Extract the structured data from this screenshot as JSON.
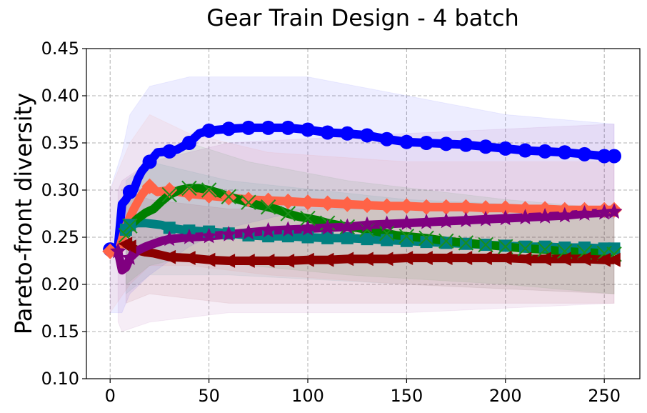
{
  "chart_data": {
    "type": "line",
    "title": "Gear Train Design - 4 batch",
    "xlabel": "",
    "ylabel": "Pareto-front diversity",
    "xlim": [
      -12,
      268
    ],
    "ylim": [
      0.1,
      0.45
    ],
    "xticks": [
      0,
      50,
      100,
      150,
      200,
      250
    ],
    "yticks": [
      0.1,
      0.15,
      0.2,
      0.25,
      0.3,
      0.35,
      0.4,
      0.45
    ],
    "xtick_labels": [
      "0",
      "50",
      "100",
      "150",
      "200",
      "250"
    ],
    "ytick_labels": [
      "0.10",
      "0.15",
      "0.20",
      "0.25",
      "0.30",
      "0.35",
      "0.40",
      "0.45"
    ],
    "grid": true,
    "legend": "none",
    "series": [
      {
        "color": "#0000ff",
        "marker": "circle",
        "line_width": 12,
        "marker_size": 10,
        "points": [
          [
            0,
            0.237
          ],
          [
            4,
            0.24
          ],
          [
            6,
            0.285
          ],
          [
            8,
            0.29
          ],
          [
            10,
            0.298
          ],
          [
            12,
            0.3
          ],
          [
            14,
            0.312
          ],
          [
            16,
            0.32
          ],
          [
            18,
            0.325
          ],
          [
            20,
            0.33
          ],
          [
            24,
            0.34
          ],
          [
            30,
            0.341
          ],
          [
            34,
            0.343
          ],
          [
            40,
            0.35
          ],
          [
            45,
            0.36
          ],
          [
            50,
            0.363
          ],
          [
            60,
            0.365
          ],
          [
            70,
            0.366
          ],
          [
            80,
            0.366
          ],
          [
            90,
            0.366
          ],
          [
            100,
            0.364
          ],
          [
            110,
            0.361
          ],
          [
            120,
            0.36
          ],
          [
            130,
            0.358
          ],
          [
            140,
            0.354
          ],
          [
            150,
            0.351
          ],
          [
            160,
            0.35
          ],
          [
            170,
            0.349
          ],
          [
            180,
            0.348
          ],
          [
            190,
            0.346
          ],
          [
            200,
            0.344
          ],
          [
            210,
            0.342
          ],
          [
            220,
            0.341
          ],
          [
            230,
            0.34
          ],
          [
            240,
            0.338
          ],
          [
            250,
            0.336
          ],
          [
            255,
            0.336
          ]
        ],
        "band": [
          [
            0,
            0.17,
            0.3
          ],
          [
            6,
            0.17,
            0.34
          ],
          [
            10,
            0.19,
            0.38
          ],
          [
            20,
            0.21,
            0.41
          ],
          [
            40,
            0.24,
            0.42
          ],
          [
            60,
            0.26,
            0.42
          ],
          [
            100,
            0.28,
            0.42
          ],
          [
            150,
            0.28,
            0.4
          ],
          [
            200,
            0.28,
            0.38
          ],
          [
            255,
            0.27,
            0.37
          ]
        ]
      },
      {
        "color": "#ff6347",
        "marker": "diamond",
        "line_width": 12,
        "marker_size": 11,
        "points": [
          [
            0,
            0.235
          ],
          [
            4,
            0.233
          ],
          [
            8,
            0.262
          ],
          [
            12,
            0.28
          ],
          [
            16,
            0.295
          ],
          [
            18,
            0.3
          ],
          [
            20,
            0.304
          ],
          [
            24,
            0.298
          ],
          [
            30,
            0.3
          ],
          [
            40,
            0.296
          ],
          [
            50,
            0.294
          ],
          [
            60,
            0.292
          ],
          [
            70,
            0.29
          ],
          [
            80,
            0.289
          ],
          [
            90,
            0.288
          ],
          [
            100,
            0.287
          ],
          [
            110,
            0.286
          ],
          [
            120,
            0.285
          ],
          [
            130,
            0.284
          ],
          [
            140,
            0.283
          ],
          [
            150,
            0.283
          ],
          [
            160,
            0.282
          ],
          [
            170,
            0.282
          ],
          [
            180,
            0.282
          ],
          [
            190,
            0.281
          ],
          [
            200,
            0.281
          ],
          [
            210,
            0.28
          ],
          [
            220,
            0.28
          ],
          [
            230,
            0.279
          ],
          [
            240,
            0.279
          ],
          [
            250,
            0.279
          ],
          [
            255,
            0.279
          ]
        ],
        "band": [
          [
            0,
            0.17,
            0.3
          ],
          [
            10,
            0.2,
            0.35
          ],
          [
            20,
            0.22,
            0.38
          ],
          [
            40,
            0.22,
            0.36
          ],
          [
            80,
            0.21,
            0.34
          ],
          [
            150,
            0.2,
            0.33
          ],
          [
            255,
            0.19,
            0.33
          ]
        ]
      },
      {
        "color": "#008080",
        "marker": "square",
        "line_width": 12,
        "marker_size": 10,
        "points": [
          [
            8,
            0.258
          ],
          [
            10,
            0.263
          ],
          [
            14,
            0.265
          ],
          [
            18,
            0.265
          ],
          [
            22,
            0.264
          ],
          [
            26,
            0.263
          ],
          [
            30,
            0.26
          ],
          [
            40,
            0.257
          ],
          [
            50,
            0.256
          ],
          [
            60,
            0.254
          ],
          [
            70,
            0.252
          ],
          [
            80,
            0.251
          ],
          [
            90,
            0.251
          ],
          [
            100,
            0.25
          ],
          [
            110,
            0.249
          ],
          [
            120,
            0.249
          ],
          [
            130,
            0.248
          ],
          [
            140,
            0.247
          ],
          [
            150,
            0.246
          ],
          [
            160,
            0.245
          ],
          [
            170,
            0.244
          ],
          [
            180,
            0.243
          ],
          [
            190,
            0.242
          ],
          [
            200,
            0.241
          ],
          [
            210,
            0.24
          ],
          [
            220,
            0.24
          ],
          [
            230,
            0.239
          ],
          [
            240,
            0.239
          ],
          [
            250,
            0.238
          ],
          [
            255,
            0.238
          ]
        ],
        "band": [
          [
            8,
            0.19,
            0.31
          ],
          [
            20,
            0.21,
            0.33
          ],
          [
            60,
            0.21,
            0.31
          ],
          [
            150,
            0.2,
            0.29
          ],
          [
            255,
            0.19,
            0.28
          ]
        ]
      },
      {
        "color": "#008000",
        "marker": "x",
        "line_width": 12,
        "marker_size": 10,
        "points": [
          [
            8,
            0.252
          ],
          [
            10,
            0.262
          ],
          [
            14,
            0.27
          ],
          [
            18,
            0.276
          ],
          [
            22,
            0.28
          ],
          [
            26,
            0.288
          ],
          [
            30,
            0.295
          ],
          [
            35,
            0.3
          ],
          [
            40,
            0.302
          ],
          [
            45,
            0.302
          ],
          [
            50,
            0.3
          ],
          [
            55,
            0.297
          ],
          [
            60,
            0.293
          ],
          [
            65,
            0.29
          ],
          [
            70,
            0.287
          ],
          [
            75,
            0.284
          ],
          [
            80,
            0.282
          ],
          [
            85,
            0.279
          ],
          [
            90,
            0.275
          ],
          [
            95,
            0.272
          ],
          [
            100,
            0.27
          ],
          [
            105,
            0.268
          ],
          [
            110,
            0.265
          ],
          [
            115,
            0.263
          ],
          [
            120,
            0.261
          ],
          [
            125,
            0.26
          ],
          [
            130,
            0.258
          ],
          [
            135,
            0.256
          ],
          [
            140,
            0.254
          ],
          [
            145,
            0.252
          ],
          [
            150,
            0.251
          ],
          [
            160,
            0.249
          ],
          [
            170,
            0.246
          ],
          [
            180,
            0.244
          ],
          [
            190,
            0.242
          ],
          [
            200,
            0.24
          ],
          [
            210,
            0.238
          ],
          [
            220,
            0.237
          ],
          [
            230,
            0.235
          ],
          [
            240,
            0.234
          ],
          [
            250,
            0.233
          ],
          [
            255,
            0.232
          ]
        ],
        "band": [
          [
            8,
            0.2,
            0.3
          ],
          [
            20,
            0.22,
            0.33
          ],
          [
            40,
            0.23,
            0.35
          ],
          [
            70,
            0.22,
            0.33
          ],
          [
            120,
            0.21,
            0.31
          ],
          [
            200,
            0.2,
            0.29
          ],
          [
            255,
            0.19,
            0.28
          ]
        ]
      },
      {
        "color": "#8b0000",
        "marker": "triangle-left",
        "line_width": 12,
        "marker_size": 11,
        "points": [
          [
            8,
            0.243
          ],
          [
            10,
            0.24
          ],
          [
            14,
            0.236
          ],
          [
            18,
            0.234
          ],
          [
            22,
            0.233
          ],
          [
            26,
            0.231
          ],
          [
            30,
            0.229
          ],
          [
            40,
            0.228
          ],
          [
            50,
            0.226
          ],
          [
            60,
            0.225
          ],
          [
            70,
            0.225
          ],
          [
            80,
            0.225
          ],
          [
            90,
            0.225
          ],
          [
            100,
            0.226
          ],
          [
            110,
            0.226
          ],
          [
            120,
            0.227
          ],
          [
            130,
            0.227
          ],
          [
            140,
            0.227
          ],
          [
            150,
            0.228
          ],
          [
            160,
            0.228
          ],
          [
            170,
            0.228
          ],
          [
            180,
            0.228
          ],
          [
            190,
            0.228
          ],
          [
            200,
            0.228
          ],
          [
            210,
            0.227
          ],
          [
            220,
            0.227
          ],
          [
            230,
            0.227
          ],
          [
            240,
            0.227
          ],
          [
            250,
            0.226
          ],
          [
            255,
            0.226
          ]
        ],
        "band": [
          [
            8,
            0.18,
            0.3
          ],
          [
            20,
            0.19,
            0.29
          ],
          [
            60,
            0.18,
            0.28
          ],
          [
            150,
            0.18,
            0.28
          ],
          [
            255,
            0.18,
            0.28
          ]
        ]
      },
      {
        "color": "#800080",
        "marker": "star",
        "line_width": 12,
        "marker_size": 12,
        "points": [
          [
            4,
            0.235
          ],
          [
            6,
            0.215
          ],
          [
            8,
            0.218
          ],
          [
            10,
            0.228
          ],
          [
            14,
            0.236
          ],
          [
            18,
            0.24
          ],
          [
            22,
            0.243
          ],
          [
            26,
            0.246
          ],
          [
            30,
            0.248
          ],
          [
            40,
            0.25
          ],
          [
            50,
            0.251
          ],
          [
            60,
            0.253
          ],
          [
            70,
            0.255
          ],
          [
            80,
            0.257
          ],
          [
            90,
            0.258
          ],
          [
            100,
            0.259
          ],
          [
            110,
            0.26
          ],
          [
            120,
            0.261
          ],
          [
            130,
            0.263
          ],
          [
            140,
            0.264
          ],
          [
            150,
            0.265
          ],
          [
            160,
            0.266
          ],
          [
            170,
            0.267
          ],
          [
            180,
            0.268
          ],
          [
            190,
            0.269
          ],
          [
            200,
            0.27
          ],
          [
            210,
            0.271
          ],
          [
            220,
            0.272
          ],
          [
            230,
            0.273
          ],
          [
            240,
            0.275
          ],
          [
            250,
            0.276
          ],
          [
            255,
            0.277
          ]
        ],
        "band": [
          [
            4,
            0.16,
            0.3
          ],
          [
            6,
            0.15,
            0.31
          ],
          [
            20,
            0.16,
            0.33
          ],
          [
            60,
            0.17,
            0.35
          ],
          [
            150,
            0.17,
            0.36
          ],
          [
            255,
            0.18,
            0.37
          ]
        ]
      }
    ]
  }
}
